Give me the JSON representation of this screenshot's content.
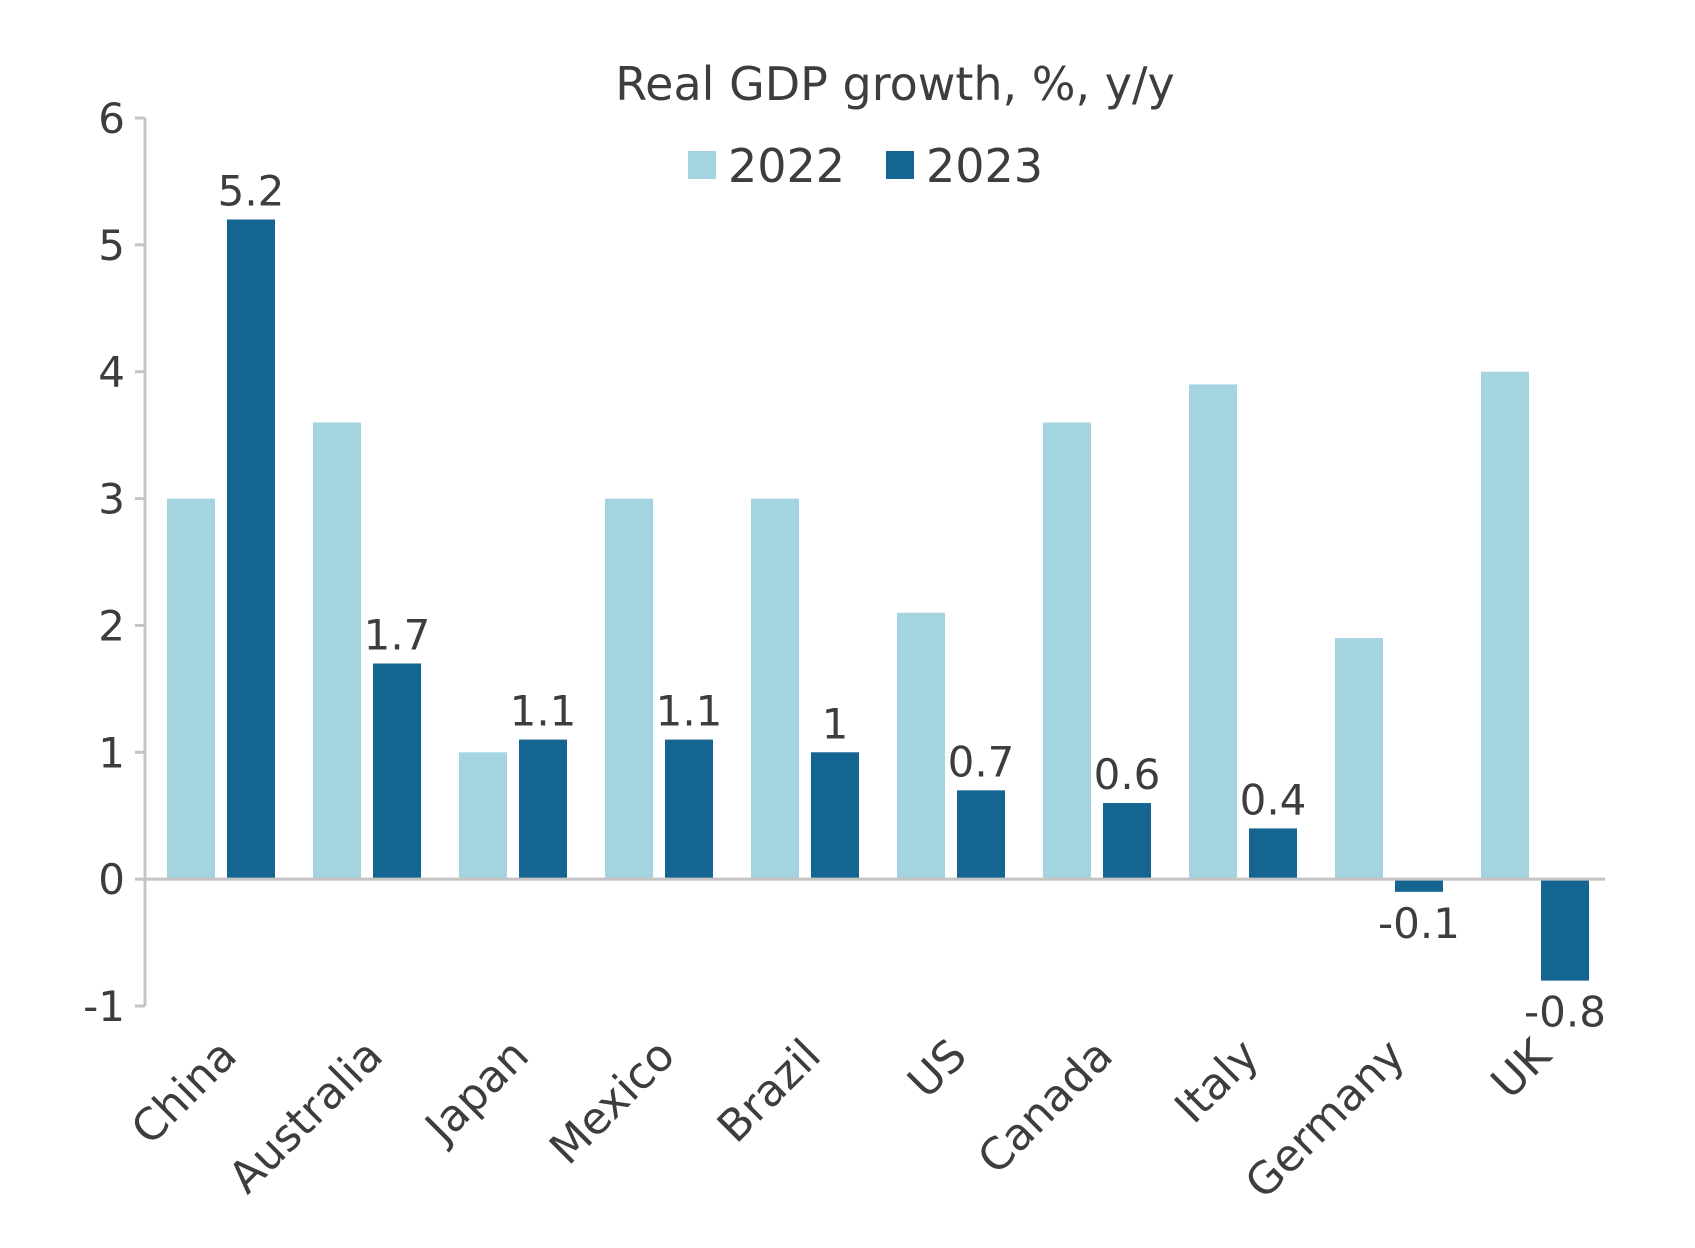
{
  "chart_data": {
    "type": "bar",
    "title": "Real GDP growth, %, y/y",
    "xlabel": "",
    "ylabel": "",
    "ylim": [
      -1,
      6
    ],
    "yticks": [
      -1,
      0,
      1,
      2,
      3,
      4,
      5,
      6
    ],
    "categories": [
      "China",
      "Australia",
      "Japan",
      "Mexico",
      "Brazil",
      "US",
      "Canada",
      "Italy",
      "Germany",
      "UK"
    ],
    "series": [
      {
        "name": "2022",
        "color": "#a4d4e0",
        "values": [
          3.0,
          3.6,
          1.0,
          3.0,
          3.0,
          2.1,
          3.6,
          3.9,
          1.9,
          4.0
        ],
        "labels_shown": false
      },
      {
        "name": "2023",
        "color": "#146591",
        "values": [
          5.2,
          1.7,
          1.1,
          1.1,
          1.0,
          0.7,
          0.6,
          0.4,
          -0.1,
          -0.8
        ],
        "labels_shown": true,
        "data_labels": [
          "5.2",
          "1.7",
          "1.1",
          "1.1",
          "1",
          "0.7",
          "0.6",
          "0.4",
          "-0.1",
          "-0.8"
        ]
      }
    ],
    "legend_position": "top-center",
    "grid": false
  }
}
